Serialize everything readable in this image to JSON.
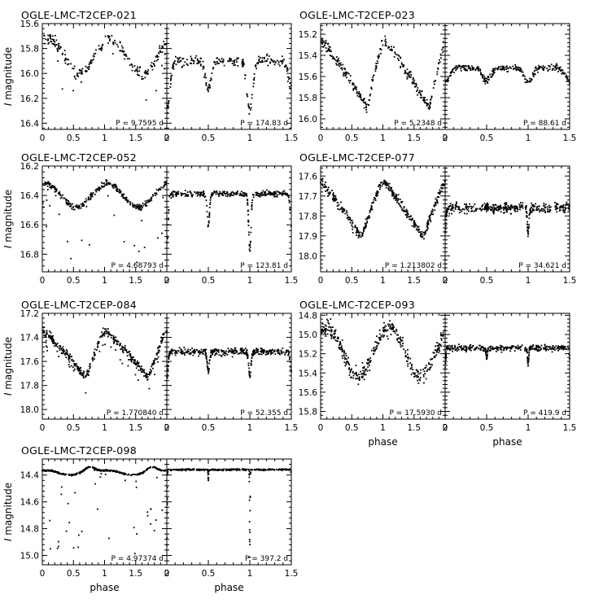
{
  "figure": {
    "ylabel_italic": "I",
    "ylabel_rest": " magnitude",
    "xlabel": "phase"
  },
  "chart_data": [
    {
      "type": "scatter",
      "star": "OGLE-LMC-T2CEP-021",
      "ylim": [
        16.45,
        15.6
      ],
      "yticks": [
        15.6,
        15.8,
        16.0,
        16.2,
        16.4
      ],
      "puls_xlim": [
        0,
        2
      ],
      "puls_xticks": [
        0,
        0.5,
        1,
        1.5,
        2
      ],
      "ecl_xlim": [
        0,
        1.5
      ],
      "ecl_xticks": [
        0,
        0.5,
        1,
        1.5
      ],
      "puls_period_label": "P = 9.7595 d",
      "ecl_period_label": "P = 174.83 d",
      "puls": {
        "shape": "sine",
        "mean": 15.86,
        "amp": 0.14,
        "minphase": 0.6,
        "scatter": 0.05,
        "eclipse_depth": 0.35,
        "n": 230
      },
      "ecl": {
        "base": 15.9,
        "scatter": 0.04,
        "primary_depth": 0.4,
        "secondary_depth": 0.22,
        "width": 0.05,
        "n": 260
      }
    },
    {
      "type": "scatter",
      "star": "OGLE-LMC-T2CEP-023",
      "ylim": [
        16.1,
        15.1
      ],
      "yticks": [
        15.2,
        15.4,
        15.6,
        15.8,
        16.0
      ],
      "puls_xlim": [
        0,
        2
      ],
      "puls_xticks": [
        0,
        0.5,
        1,
        1.5,
        2
      ],
      "ecl_xlim": [
        0,
        1.5
      ],
      "ecl_xticks": [
        0,
        0.5,
        1,
        1.5
      ],
      "puls_period_label": "P = 5.2348 d",
      "ecl_period_label": "P = 88.61 d",
      "puls": {
        "shape": "saw",
        "mean": 15.58,
        "amp": 0.32,
        "minphase": 0.75,
        "scatter": 0.05,
        "eclipse_depth": 0.0,
        "n": 300
      },
      "ecl": {
        "base": 15.52,
        "scatter": 0.03,
        "primary_depth": 0.14,
        "secondary_depth": 0.12,
        "width": 0.07,
        "n": 300
      }
    },
    {
      "type": "scatter",
      "star": "OGLE-LMC-T2CEP-052",
      "ylim": [
        16.92,
        16.2
      ],
      "yticks": [
        16.2,
        16.4,
        16.6,
        16.8
      ],
      "puls_xlim": [
        0,
        2
      ],
      "puls_xticks": [
        0,
        0.5,
        1,
        1.5,
        2
      ],
      "ecl_xlim": [
        0,
        1.5
      ],
      "ecl_xticks": [
        0,
        0.5,
        1,
        1.5
      ],
      "puls_period_label": "P = 4.68793 d",
      "ecl_period_label": "P = 123.81 d",
      "puls": {
        "shape": "sine",
        "mean": 16.4,
        "amp": 0.08,
        "minphase": 0.55,
        "scatter": 0.02,
        "eclipse_depth": 0.4,
        "n": 320
      },
      "ecl": {
        "base": 16.39,
        "scatter": 0.02,
        "primary_depth": 0.38,
        "secondary_depth": 0.22,
        "width": 0.02,
        "n": 340
      }
    },
    {
      "type": "scatter",
      "star": "OGLE-LMC-T2CEP-077",
      "ylim": [
        18.08,
        17.55
      ],
      "yticks": [
        17.6,
        17.7,
        17.8,
        17.9,
        18.0
      ],
      "puls_xlim": [
        0,
        2
      ],
      "puls_xticks": [
        0,
        0.5,
        1,
        1.5,
        2
      ],
      "ecl_xlim": [
        0,
        1.5
      ],
      "ecl_xticks": [
        0,
        0.5,
        1,
        1.5
      ],
      "puls_period_label": "P = 1.213802 d",
      "ecl_period_label": "P = 34.621 d",
      "puls": {
        "shape": "saw",
        "mean": 17.77,
        "amp": 0.14,
        "minphase": 0.65,
        "scatter": 0.025,
        "eclipse_depth": 0.0,
        "n": 420
      },
      "ecl": {
        "base": 17.76,
        "scatter": 0.025,
        "primary_depth": 0.12,
        "secondary_depth": 0.0,
        "width": 0.015,
        "n": 420
      }
    },
    {
      "type": "scatter",
      "star": "OGLE-LMC-T2CEP-084",
      "ylim": [
        18.08,
        17.2
      ],
      "yticks": [
        17.2,
        17.4,
        17.6,
        17.8,
        18.0
      ],
      "puls_xlim": [
        0,
        2
      ],
      "puls_xticks": [
        0,
        0.5,
        1,
        1.5,
        2
      ],
      "ecl_xlim": [
        0,
        1.5
      ],
      "ecl_xticks": [
        0,
        0.5,
        1,
        1.5
      ],
      "puls_period_label": "P = 1.770840 d",
      "ecl_period_label": "P = 52.355 d",
      "puls": {
        "shape": "saw",
        "mean": 17.54,
        "amp": 0.2,
        "minphase": 0.7,
        "scatter": 0.035,
        "eclipse_depth": 0.12,
        "n": 420
      },
      "ecl": {
        "base": 17.52,
        "scatter": 0.03,
        "primary_depth": 0.2,
        "secondary_depth": 0.16,
        "width": 0.02,
        "n": 420
      }
    },
    {
      "type": "scatter",
      "star": "OGLE-LMC-T2CEP-093",
      "ylim": [
        15.88,
        14.78
      ],
      "yticks": [
        14.8,
        15.0,
        15.2,
        15.4,
        15.6,
        15.8
      ],
      "puls_xlim": [
        0,
        2
      ],
      "puls_xticks": [
        0,
        0.5,
        1,
        1.5,
        2
      ],
      "ecl_xlim": [
        0,
        1.5
      ],
      "ecl_xticks": [
        0,
        0.5,
        1,
        1.5
      ],
      "puls_period_label": "P = 17.5930 d",
      "ecl_period_label": "P = 419.9 d",
      "puls": {
        "shape": "sine",
        "mean": 15.18,
        "amp": 0.25,
        "minphase": 0.6,
        "scatter": 0.08,
        "eclipse_depth": 0.0,
        "n": 380
      },
      "ecl": {
        "base": 15.14,
        "scatter": 0.03,
        "primary_depth": 0.18,
        "secondary_depth": 0.1,
        "width": 0.01,
        "n": 380
      }
    },
    {
      "type": "scatter",
      "star": "OGLE-LMC-T2CEP-098",
      "ylim": [
        15.07,
        14.28
      ],
      "yticks": [
        14.4,
        14.6,
        14.8,
        15.0
      ],
      "puls_xlim": [
        0,
        2
      ],
      "puls_xticks": [
        0,
        0.5,
        1,
        1.5,
        2
      ],
      "ecl_xlim": [
        0,
        1.5
      ],
      "ecl_xticks": [
        0,
        0.5,
        1,
        1.5
      ],
      "puls_period_label": "P = 4.97374 d",
      "ecl_period_label": "P = 397.2 d",
      "puls": {
        "shape": "flat",
        "mean": 14.36,
        "amp": 0.035,
        "minphase": 0.7,
        "scatter": 0.006,
        "eclipse_depth": 0.6,
        "n": 360
      },
      "ecl": {
        "base": 14.36,
        "scatter": 0.006,
        "primary_depth": 0.65,
        "secondary_depth": 0.08,
        "width": 0.004,
        "n": 360
      }
    }
  ]
}
